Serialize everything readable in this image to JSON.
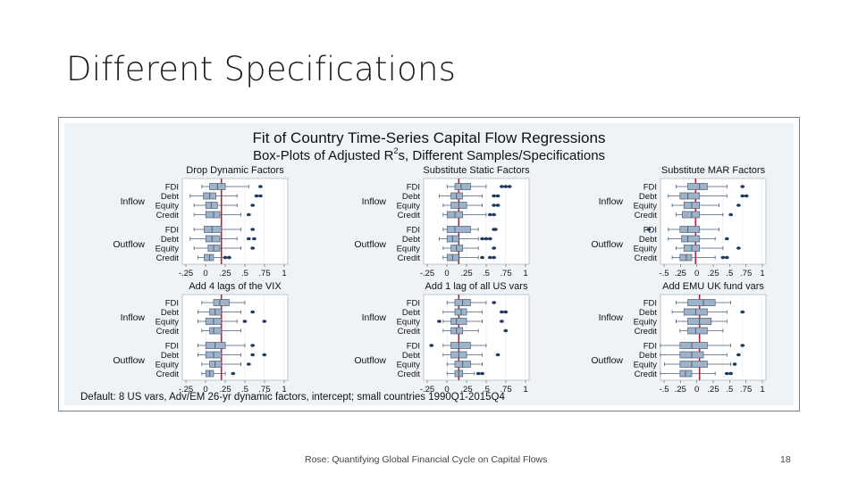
{
  "slide": {
    "title": "Different Specifications",
    "footer": "Rose: Quantifying Global Financial Cycle on Capital Flows",
    "page_number": "18"
  },
  "figure": {
    "title": "Fit of Country Time-Series Capital Flow Regressions",
    "subtitle": "Box-Plots of Adjusted R",
    "subtitle_sup": "2",
    "subtitle_tail": "s, Different Samples/Specifications",
    "note": "Default: 8 US vars, Adv/EM 26-yr dynamic factors, intercept; small countries 1990Q1-2015Q4",
    "colors": {
      "box": "#9fb3c8",
      "box_stroke": "#4a5e78",
      "ref_line": "#b0213a",
      "outlier": "#1f3a5f",
      "panel_bg": "#ffffff",
      "outer_bg": "#eef3f7"
    }
  },
  "chart_data": [
    {
      "type": "box",
      "title": "Drop Dynamic Factors",
      "groups": [
        "Inflow",
        "Outflow"
      ],
      "categories": [
        "FDI",
        "Debt",
        "Equity",
        "Credit"
      ],
      "xticks": [
        "-.25",
        "0",
        ".25",
        ".5",
        ".75",
        "1"
      ],
      "ref_line": 0.2,
      "series": [
        {
          "group": "Inflow",
          "name": "FDI",
          "whisker": [
            -0.05,
            0.55
          ],
          "box": [
            0.05,
            0.25
          ],
          "median": 0.15,
          "outliers": [
            0.7
          ]
        },
        {
          "group": "Inflow",
          "name": "Debt",
          "whisker": [
            -0.2,
            0.4
          ],
          "box": [
            -0.03,
            0.13
          ],
          "median": 0.05,
          "outliers": [
            0.65,
            0.7
          ]
        },
        {
          "group": "Inflow",
          "name": "Equity",
          "whisker": [
            -0.15,
            0.4
          ],
          "box": [
            0.0,
            0.15
          ],
          "median": 0.07,
          "outliers": [
            0.6
          ]
        },
        {
          "group": "Inflow",
          "name": "Credit",
          "whisker": [
            -0.15,
            0.45
          ],
          "box": [
            0.0,
            0.18
          ],
          "median": 0.1,
          "outliers": [
            0.55
          ]
        },
        {
          "group": "Outflow",
          "name": "FDI",
          "whisker": [
            -0.15,
            0.45
          ],
          "box": [
            -0.02,
            0.2
          ],
          "median": 0.08,
          "outliers": [
            0.6
          ]
        },
        {
          "group": "Outflow",
          "name": "Debt",
          "whisker": [
            -0.2,
            0.4
          ],
          "box": [
            0.0,
            0.18
          ],
          "median": 0.08,
          "outliers": [
            0.55,
            0.62
          ]
        },
        {
          "group": "Outflow",
          "name": "Equity",
          "whisker": [
            -0.15,
            0.45
          ],
          "box": [
            0.03,
            0.18
          ],
          "median": 0.1,
          "outliers": [
            0.6
          ]
        },
        {
          "group": "Outflow",
          "name": "Credit",
          "whisker": [
            -0.1,
            0.3
          ],
          "box": [
            -0.02,
            0.1
          ],
          "median": 0.05,
          "outliers": [
            0.25,
            0.3
          ]
        }
      ]
    },
    {
      "type": "box",
      "title": "Substitute Static Factors",
      "groups": [
        "Inflow",
        "Outflow"
      ],
      "categories": [
        "FDI",
        "Debt",
        "Equity",
        "Credit"
      ],
      "xticks": [
        "-.25",
        "0",
        ".25",
        ".5",
        ".75",
        "1"
      ],
      "ref_line": 0.15,
      "series": [
        {
          "group": "Inflow",
          "name": "FDI",
          "whisker": [
            0.0,
            0.5
          ],
          "box": [
            0.1,
            0.3
          ],
          "median": 0.18,
          "outliers": [
            0.7,
            0.75,
            0.8
          ]
        },
        {
          "group": "Inflow",
          "name": "Debt",
          "whisker": [
            -0.1,
            0.45
          ],
          "box": [
            0.05,
            0.2
          ],
          "median": 0.12,
          "outliers": [
            0.6,
            0.65
          ]
        },
        {
          "group": "Inflow",
          "name": "Equity",
          "whisker": [
            -0.05,
            0.45
          ],
          "box": [
            0.05,
            0.25
          ],
          "median": 0.15,
          "outliers": [
            0.6,
            0.65
          ]
        },
        {
          "group": "Inflow",
          "name": "Credit",
          "whisker": [
            -0.05,
            0.5
          ],
          "box": [
            0.0,
            0.2
          ],
          "median": 0.1,
          "outliers": [
            0.55,
            0.6
          ]
        },
        {
          "group": "Outflow",
          "name": "FDI",
          "whisker": [
            -0.05,
            0.4
          ],
          "box": [
            0.0,
            0.3
          ],
          "median": 0.1,
          "outliers": [
            0.6,
            0.62
          ]
        },
        {
          "group": "Outflow",
          "name": "Debt",
          "whisker": [
            -0.1,
            0.4
          ],
          "box": [
            0.0,
            0.15
          ],
          "median": 0.07,
          "outliers": [
            0.45,
            0.5,
            0.55
          ]
        },
        {
          "group": "Outflow",
          "name": "Equity",
          "whisker": [
            -0.05,
            0.4
          ],
          "box": [
            0.05,
            0.2
          ],
          "median": 0.12,
          "outliers": [
            0.6
          ]
        },
        {
          "group": "Outflow",
          "name": "Credit",
          "whisker": [
            -0.05,
            0.4
          ],
          "box": [
            0.0,
            0.15
          ],
          "median": 0.07,
          "outliers": [
            0.45,
            0.55,
            0.6
          ]
        }
      ]
    },
    {
      "type": "box",
      "title": "Substitute MAR Factors",
      "groups": [
        "Inflow",
        "Outflow"
      ],
      "categories": [
        "FDI",
        "Debt",
        "Equity",
        "Credit"
      ],
      "xticks": [
        "-.5",
        ".25",
        "0",
        ".25",
        ".5",
        ".75",
        "1"
      ],
      "ref_line": 0.15,
      "series": [
        {
          "group": "Inflow",
          "name": "FDI",
          "whisker": [
            -0.1,
            0.55
          ],
          "box": [
            0.05,
            0.3
          ],
          "median": 0.2,
          "outliers": [
            0.75
          ]
        },
        {
          "group": "Inflow",
          "name": "Debt",
          "whisker": [
            -0.2,
            0.55
          ],
          "box": [
            -0.05,
            0.2
          ],
          "median": 0.05,
          "outliers": [
            0.8,
            0.75
          ]
        },
        {
          "group": "Inflow",
          "name": "Equity",
          "whisker": [
            -0.15,
            0.45
          ],
          "box": [
            0.0,
            0.2
          ],
          "median": 0.1,
          "outliers": [
            0.7
          ]
        },
        {
          "group": "Inflow",
          "name": "Credit",
          "whisker": [
            -0.1,
            0.5
          ],
          "box": [
            -0.02,
            0.2
          ],
          "median": 0.1,
          "outliers": [
            0.6
          ]
        },
        {
          "group": "Outflow",
          "name": "FDI",
          "whisker": [
            -0.2,
            0.45
          ],
          "box": [
            -0.05,
            0.2
          ],
          "median": 0.05,
          "outliers": [
            -0.45
          ]
        },
        {
          "group": "Outflow",
          "name": "Debt",
          "whisker": [
            -0.2,
            0.4
          ],
          "box": [
            -0.03,
            0.2
          ],
          "median": 0.05,
          "outliers": [
            0.55
          ]
        },
        {
          "group": "Outflow",
          "name": "Equity",
          "whisker": [
            -0.1,
            0.5
          ],
          "box": [
            0.0,
            0.2
          ],
          "median": 0.1,
          "outliers": [
            0.7
          ]
        },
        {
          "group": "Outflow",
          "name": "Credit",
          "whisker": [
            -0.15,
            0.4
          ],
          "box": [
            -0.05,
            0.1
          ],
          "median": 0.03,
          "outliers": [
            0.5,
            0.55
          ]
        }
      ]
    },
    {
      "type": "box",
      "title": "Add 4 lags of the VIX",
      "groups": [
        "Inflow",
        "Outflow"
      ],
      "categories": [
        "FDI",
        "Debt",
        "Equity",
        "Credit"
      ],
      "xticks": [
        "-.25",
        "0",
        ".25",
        ".5",
        ".75",
        "1"
      ],
      "ref_line": 0.2,
      "series": [
        {
          "group": "Inflow",
          "name": "FDI",
          "whisker": [
            -0.05,
            0.5
          ],
          "box": [
            0.1,
            0.3
          ],
          "median": 0.18,
          "outliers": []
        },
        {
          "group": "Inflow",
          "name": "Debt",
          "whisker": [
            -0.1,
            0.45
          ],
          "box": [
            0.05,
            0.2
          ],
          "median": 0.12,
          "outliers": [
            0.6
          ]
        },
        {
          "group": "Inflow",
          "name": "Equity",
          "whisker": [
            -0.1,
            0.4
          ],
          "box": [
            0.0,
            0.2
          ],
          "median": 0.1,
          "outliers": [
            0.5,
            0.75
          ]
        },
        {
          "group": "Inflow",
          "name": "Credit",
          "whisker": [
            -0.05,
            0.45
          ],
          "box": [
            0.05,
            0.2
          ],
          "median": 0.1,
          "outliers": []
        },
        {
          "group": "Outflow",
          "name": "FDI",
          "whisker": [
            -0.1,
            0.5
          ],
          "box": [
            0.0,
            0.25
          ],
          "median": 0.12,
          "outliers": [
            0.6
          ]
        },
        {
          "group": "Outflow",
          "name": "Debt",
          "whisker": [
            -0.1,
            0.45
          ],
          "box": [
            0.0,
            0.2
          ],
          "median": 0.1,
          "outliers": [
            0.6,
            0.75
          ]
        },
        {
          "group": "Outflow",
          "name": "Equity",
          "whisker": [
            -0.05,
            0.45
          ],
          "box": [
            0.05,
            0.2
          ],
          "median": 0.12,
          "outliers": [
            0.55
          ]
        },
        {
          "group": "Outflow",
          "name": "Credit",
          "whisker": [
            -0.05,
            0.25
          ],
          "box": [
            0.0,
            0.1
          ],
          "median": 0.05,
          "outliers": [
            0.35
          ]
        }
      ]
    },
    {
      "type": "box",
      "title": "Add 1 lag of all US vars",
      "groups": [
        "Inflow",
        "Outflow"
      ],
      "categories": [
        "FDI",
        "Debt",
        "Equity",
        "Credit"
      ],
      "xticks": [
        "-.25",
        "0",
        ".25",
        ".5",
        ".75",
        "1"
      ],
      "ref_line": 0.15,
      "series": [
        {
          "group": "Inflow",
          "name": "FDI",
          "whisker": [
            0.0,
            0.5
          ],
          "box": [
            0.1,
            0.3
          ],
          "median": 0.2,
          "outliers": [
            0.6
          ]
        },
        {
          "group": "Inflow",
          "name": "Debt",
          "whisker": [
            -0.05,
            0.45
          ],
          "box": [
            0.1,
            0.25
          ],
          "median": 0.18,
          "outliers": [
            0.7,
            0.75
          ]
        },
        {
          "group": "Inflow",
          "name": "Equity",
          "whisker": [
            -0.05,
            0.45
          ],
          "box": [
            0.05,
            0.25
          ],
          "median": 0.12,
          "outliers": [
            -0.1,
            0.7
          ]
        },
        {
          "group": "Inflow",
          "name": "Credit",
          "whisker": [
            -0.05,
            0.4
          ],
          "box": [
            0.05,
            0.2
          ],
          "median": 0.12,
          "outliers": [
            0.75
          ]
        },
        {
          "group": "Outflow",
          "name": "FDI",
          "whisker": [
            -0.05,
            0.5
          ],
          "box": [
            0.05,
            0.3
          ],
          "median": 0.15,
          "outliers": [
            -0.2
          ]
        },
        {
          "group": "Outflow",
          "name": "Debt",
          "whisker": [
            -0.05,
            0.45
          ],
          "box": [
            0.05,
            0.25
          ],
          "median": 0.15,
          "outliers": [
            0.65
          ]
        },
        {
          "group": "Outflow",
          "name": "Equity",
          "whisker": [
            0.0,
            0.45
          ],
          "box": [
            0.1,
            0.3
          ],
          "median": 0.2,
          "outliers": []
        },
        {
          "group": "Outflow",
          "name": "Credit",
          "whisker": [
            0.0,
            0.35
          ],
          "box": [
            0.1,
            0.2
          ],
          "median": 0.15,
          "outliers": [
            0.4,
            0.45
          ]
        }
      ]
    },
    {
      "type": "box",
      "title": "Add EMU UK fund vars",
      "groups": [
        "Inflow",
        "Outflow"
      ],
      "categories": [
        "FDI",
        "Debt",
        "Equity",
        "Credit"
      ],
      "xticks": [
        "-.5",
        ".25",
        "0",
        ".25",
        ".5",
        ".75",
        "1"
      ],
      "ref_line": 0.2,
      "series": [
        {
          "group": "Inflow",
          "name": "FDI",
          "whisker": [
            -0.1,
            0.6
          ],
          "box": [
            0.05,
            0.4
          ],
          "median": 0.25,
          "outliers": []
        },
        {
          "group": "Inflow",
          "name": "Debt",
          "whisker": [
            -0.15,
            0.55
          ],
          "box": [
            0.0,
            0.3
          ],
          "median": 0.15,
          "outliers": [
            0.75
          ]
        },
        {
          "group": "Inflow",
          "name": "Equity",
          "whisker": [
            -0.1,
            0.55
          ],
          "box": [
            0.05,
            0.35
          ],
          "median": 0.2,
          "outliers": []
        },
        {
          "group": "Inflow",
          "name": "Credit",
          "whisker": [
            -0.05,
            0.5
          ],
          "box": [
            0.05,
            0.3
          ],
          "median": 0.15,
          "outliers": []
        },
        {
          "group": "Outflow",
          "name": "FDI",
          "whisker": [
            -0.3,
            0.6
          ],
          "box": [
            -0.05,
            0.3
          ],
          "median": 0.1,
          "outliers": [
            0.75
          ]
        },
        {
          "group": "Outflow",
          "name": "Debt",
          "whisker": [
            -0.3,
            0.55
          ],
          "box": [
            -0.05,
            0.25
          ],
          "median": 0.1,
          "outliers": [
            0.7
          ]
        },
        {
          "group": "Outflow",
          "name": "Equity",
          "whisker": [
            -0.25,
            0.6
          ],
          "box": [
            -0.05,
            0.3
          ],
          "median": 0.1,
          "outliers": [
            0.65
          ]
        },
        {
          "group": "Outflow",
          "name": "Credit",
          "whisker": [
            -0.3,
            0.4
          ],
          "box": [
            -0.05,
            0.1
          ],
          "median": 0.02,
          "outliers": [
            0.55,
            0.6
          ]
        }
      ]
    }
  ]
}
